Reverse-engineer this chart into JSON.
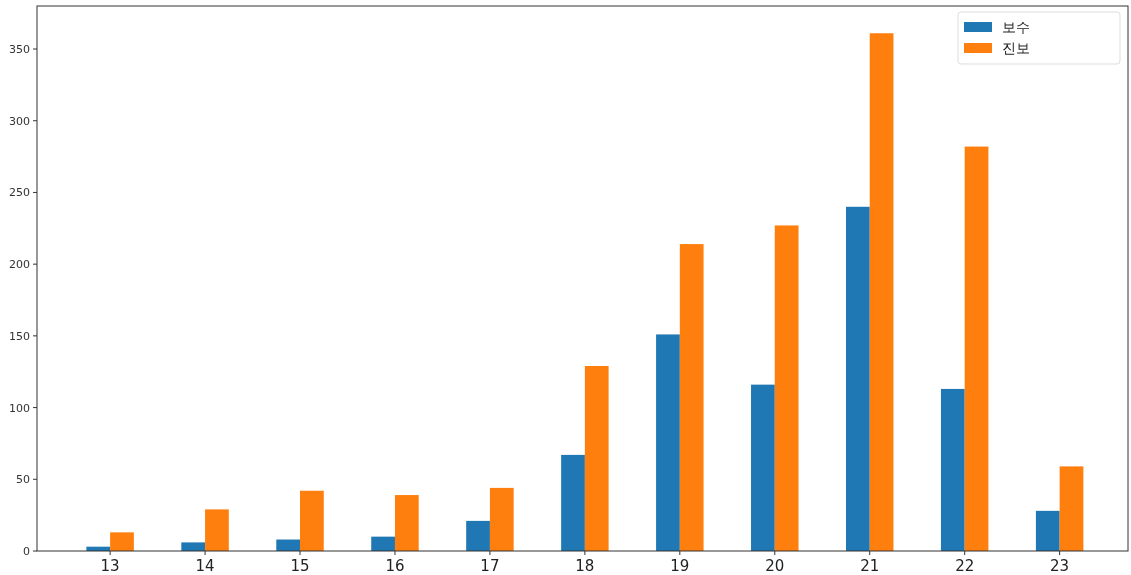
{
  "chart_data": {
    "type": "bar",
    "categories": [
      "13",
      "14",
      "15",
      "16",
      "17",
      "18",
      "19",
      "20",
      "21",
      "22",
      "23"
    ],
    "series": [
      {
        "name": "보수",
        "color": "#1f77b4",
        "values": [
          3,
          6,
          8,
          10,
          21,
          67,
          151,
          116,
          240,
          113,
          28
        ]
      },
      {
        "name": "진보",
        "color": "#ff7f0e",
        "values": [
          13,
          29,
          42,
          39,
          44,
          129,
          214,
          227,
          361,
          282,
          59
        ]
      }
    ],
    "ylim": [
      0,
      380
    ],
    "yticks": [
      0,
      50,
      100,
      150,
      200,
      250,
      300,
      350
    ],
    "grid": false,
    "legend": "top right"
  }
}
